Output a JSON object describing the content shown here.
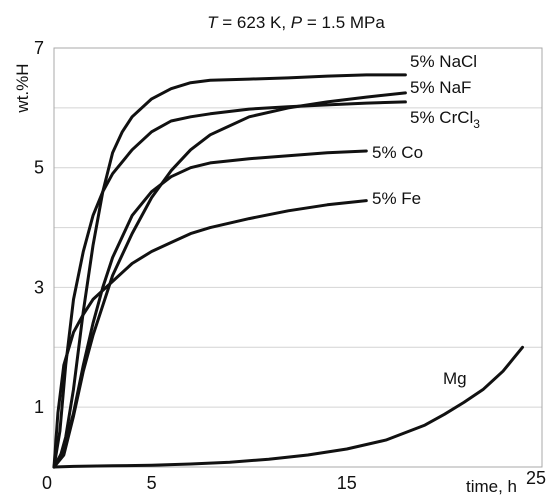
{
  "chart_data": {
    "type": "line",
    "title": {
      "var1": "T",
      "eq1": " = 623 K, ",
      "var2": "P",
      "eq2": " = 1.5 MPa"
    },
    "xlabel": "time, h",
    "ylabel": "wt.%H",
    "xlim": [
      0,
      25
    ],
    "ylim": [
      0,
      7
    ],
    "xticks": [
      0,
      5,
      15,
      25
    ],
    "yticks": [
      1,
      3,
      5,
      7
    ],
    "grid": true,
    "series": [
      {
        "name": "5% NaCl",
        "label": {
          "prefix": "5% NaCl",
          "subscript": "",
          "suffix": ""
        },
        "x": [
          0,
          0.3,
          0.6,
          1,
          1.5,
          2,
          2.5,
          3,
          3.5,
          4,
          5,
          6,
          7,
          8,
          10,
          12,
          14,
          16,
          18
        ],
        "y": [
          0,
          0.15,
          0.5,
          1.3,
          2.6,
          3.7,
          4.6,
          5.25,
          5.6,
          5.85,
          6.15,
          6.32,
          6.42,
          6.46,
          6.48,
          6.5,
          6.53,
          6.55,
          6.55
        ]
      },
      {
        "name": "5% NaF",
        "label": {
          "prefix": "5% NaF",
          "subscript": "",
          "suffix": ""
        },
        "x": [
          0,
          0.5,
          1,
          1.5,
          2,
          3,
          4,
          5,
          6,
          7,
          8,
          10,
          12,
          14,
          16,
          18
        ],
        "y": [
          0,
          0.2,
          0.85,
          1.6,
          2.2,
          3.2,
          3.9,
          4.5,
          4.95,
          5.3,
          5.55,
          5.85,
          6.0,
          6.1,
          6.18,
          6.25
        ]
      },
      {
        "name": "5% CrCl3",
        "label": {
          "prefix": "5% CrCl",
          "subscript": "3",
          "suffix": ""
        },
        "x": [
          0,
          0.3,
          0.6,
          1,
          1.5,
          2,
          2.5,
          3,
          4,
          5,
          6,
          7,
          8,
          10,
          12,
          14,
          16,
          18
        ],
        "y": [
          0,
          0.6,
          1.7,
          2.8,
          3.6,
          4.2,
          4.6,
          4.9,
          5.3,
          5.6,
          5.78,
          5.85,
          5.9,
          5.98,
          6.02,
          6.05,
          6.08,
          6.1
        ]
      },
      {
        "name": "5% Co",
        "label": {
          "prefix": "5% Co",
          "subscript": "",
          "suffix": ""
        },
        "x": [
          0,
          0.5,
          1,
          1.5,
          2,
          2.5,
          3,
          4,
          5,
          6,
          7,
          8,
          10,
          12,
          14,
          16
        ],
        "y": [
          0,
          0.3,
          0.9,
          1.7,
          2.4,
          3.0,
          3.5,
          4.2,
          4.6,
          4.85,
          5.0,
          5.08,
          5.15,
          5.2,
          5.25,
          5.28
        ]
      },
      {
        "name": "5% Fe",
        "label": {
          "prefix": "5% Fe",
          "subscript": "",
          "suffix": ""
        },
        "x": [
          0,
          0.2,
          0.5,
          1,
          1.5,
          2,
          3,
          4,
          5,
          6,
          7,
          8,
          10,
          12,
          14,
          16
        ],
        "y": [
          0,
          0.9,
          1.7,
          2.25,
          2.55,
          2.8,
          3.1,
          3.4,
          3.6,
          3.75,
          3.9,
          4.0,
          4.15,
          4.28,
          4.38,
          4.45
        ]
      },
      {
        "name": "Mg",
        "label": {
          "prefix": "Mg",
          "subscript": "",
          "suffix": ""
        },
        "x": [
          0,
          1,
          3,
          5,
          7,
          9,
          11,
          13,
          15,
          17,
          19,
          20,
          21,
          22,
          23,
          23.5,
          24
        ],
        "y": [
          0,
          0.01,
          0.02,
          0.03,
          0.05,
          0.08,
          0.13,
          0.2,
          0.3,
          0.45,
          0.7,
          0.88,
          1.08,
          1.3,
          1.6,
          1.8,
          2.0
        ]
      }
    ]
  }
}
